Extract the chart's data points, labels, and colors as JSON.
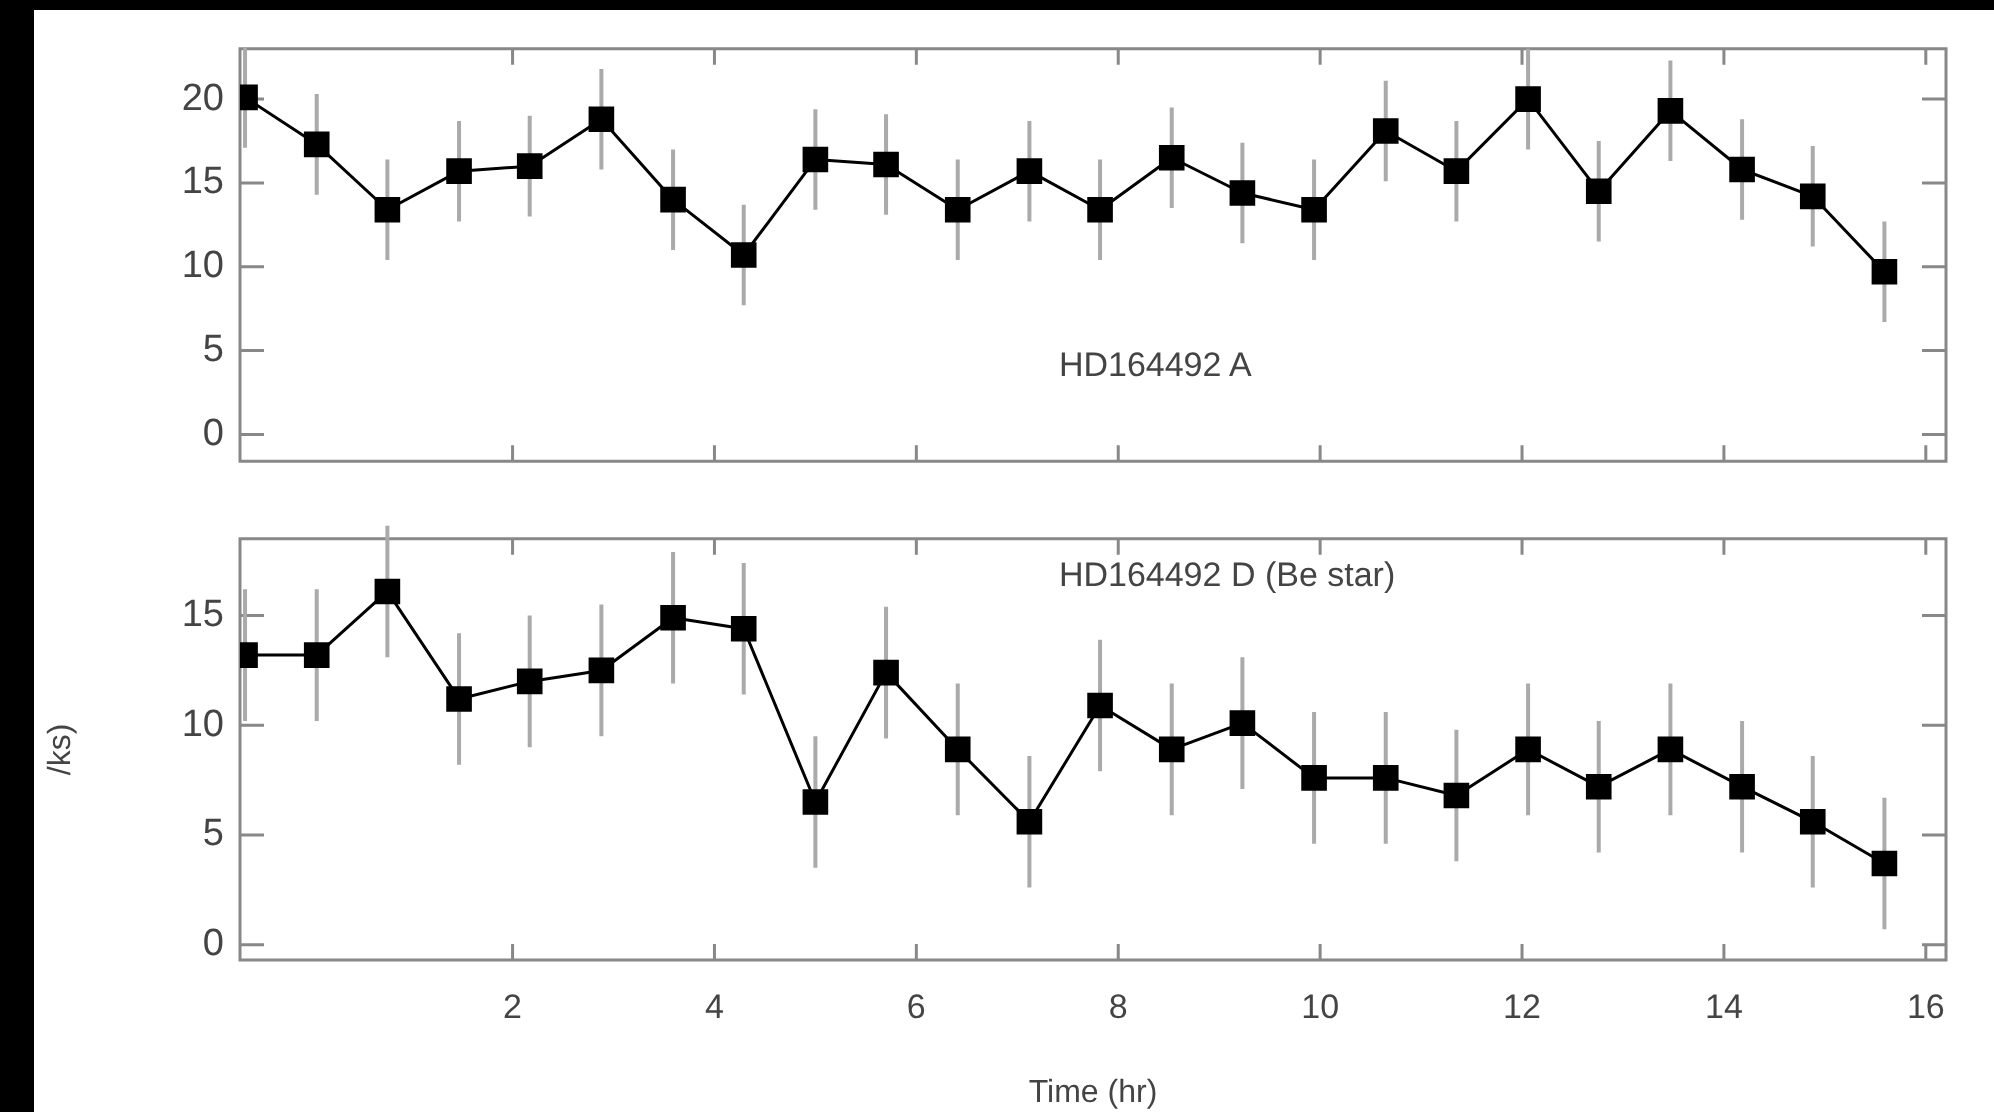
{
  "chart_data": [
    {
      "type": "line",
      "annotations": [
        "HD164492 A"
      ],
      "marker": "square",
      "grid": false,
      "legend": false,
      "tick_labels": "y",
      "x": [
        -0.65,
        0.06,
        0.76,
        1.47,
        2.17,
        2.88,
        3.59,
        4.29,
        5.0,
        5.7,
        6.41,
        7.12,
        7.82,
        8.53,
        9.23,
        9.94,
        10.65,
        11.35,
        12.06,
        12.76,
        13.47,
        14.18,
        14.88,
        15.59
      ],
      "series": [
        {
          "color": "#000000",
          "values": [
            20.1,
            17.3,
            13.4,
            15.7,
            16.0,
            18.8,
            14.0,
            10.7,
            16.4,
            16.1,
            13.4,
            15.7,
            13.4,
            16.5,
            14.4,
            13.4,
            18.1,
            15.7,
            20.0,
            14.5,
            19.3,
            15.8,
            14.2,
            9.7
          ],
          "errors": [
            3,
            3,
            3,
            3,
            3,
            3,
            3,
            3,
            3,
            3,
            3,
            3,
            3,
            3,
            3,
            3,
            3,
            3,
            3,
            3,
            3,
            3,
            3,
            3
          ]
        }
      ],
      "xlim": [
        -0.7,
        16.2
      ],
      "xticks": [
        2,
        4,
        6,
        8,
        10,
        12,
        14,
        16
      ],
      "ylim": [
        -1.6,
        23
      ],
      "yticks": [
        0,
        5,
        10,
        15,
        20
      ]
    },
    {
      "type": "line",
      "annotations": [
        "HD164492 D (Be star)"
      ],
      "marker": "square",
      "grid": false,
      "legend": false,
      "xlabel": "Time (hr)",
      "ylabel": "/ks)",
      "x": [
        -0.65,
        0.06,
        0.76,
        1.47,
        2.17,
        2.88,
        3.59,
        4.29,
        5.0,
        5.7,
        6.41,
        7.12,
        7.82,
        8.53,
        9.23,
        9.94,
        10.65,
        11.35,
        12.06,
        12.76,
        13.47,
        14.18,
        14.88,
        15.59
      ],
      "series": [
        {
          "color": "#000000",
          "values": [
            13.2,
            13.2,
            16.1,
            11.2,
            12.0,
            12.5,
            14.9,
            14.4,
            6.5,
            12.4,
            8.9,
            5.6,
            10.9,
            8.9,
            10.1,
            7.6,
            7.6,
            6.8,
            8.9,
            7.2,
            8.9,
            7.2,
            5.6,
            3.7
          ],
          "errors": [
            3,
            3,
            3,
            3,
            3,
            3,
            3,
            3,
            3,
            3,
            3,
            3,
            3,
            3,
            3,
            3,
            3,
            3,
            3,
            3,
            3,
            3,
            3,
            3
          ]
        }
      ],
      "xlim": [
        -0.7,
        16.2
      ],
      "xticks": [
        2,
        4,
        6,
        8,
        10,
        12,
        14,
        16
      ],
      "ylim": [
        -0.7,
        18.5
      ],
      "yticks": [
        0,
        5,
        10,
        15
      ]
    }
  ]
}
